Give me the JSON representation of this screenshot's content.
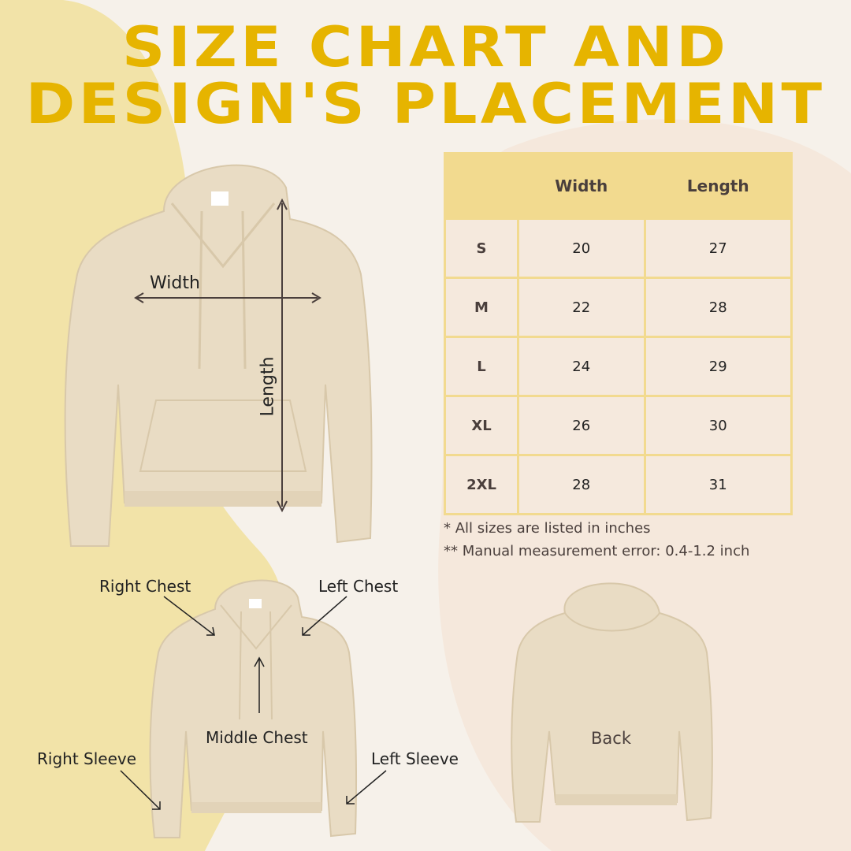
{
  "title": {
    "line1": "SIZE CHART AND",
    "line2": "DESIGN'S PLACEMENT"
  },
  "colors": {
    "title": "#e6b400",
    "table_header": "#f2da8f",
    "table_cell": "#f5e9dd",
    "background": "#f6f1ea",
    "left_blob": "#f2e3a8",
    "hoodie": "#e9dcc4"
  },
  "size_chart": {
    "headers": [
      "",
      "Width",
      "Length"
    ],
    "rows": [
      {
        "size": "S",
        "width": "20",
        "length": "27"
      },
      {
        "size": "M",
        "width": "22",
        "length": "28"
      },
      {
        "size": "L",
        "width": "24",
        "length": "29"
      },
      {
        "size": "XL",
        "width": "26",
        "length": "30"
      },
      {
        "size": "2XL",
        "width": "28",
        "length": "31"
      }
    ],
    "notes": [
      "* All sizes are listed in inches",
      "** Manual measurement error: 0.4-1.2 inch"
    ]
  },
  "measure_labels": {
    "width": "Width",
    "length": "Length"
  },
  "placements": {
    "right_chest": "Right Chest",
    "left_chest": "Left Chest",
    "middle_chest": "Middle Chest",
    "right_sleeve": "Right Sleeve",
    "left_sleeve": "Left Sleeve",
    "back": "Back"
  }
}
